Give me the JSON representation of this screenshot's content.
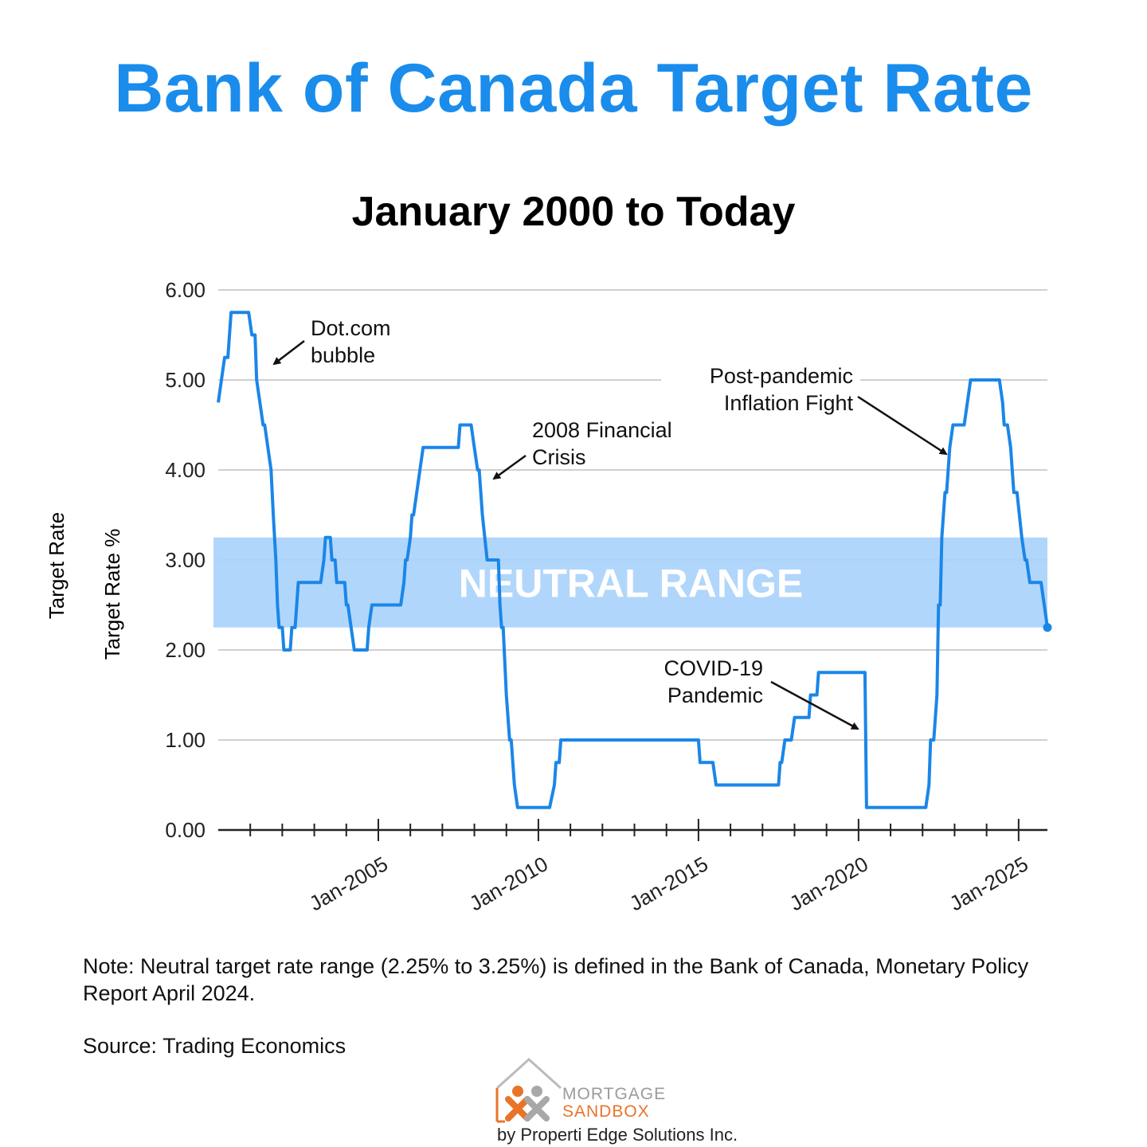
{
  "page": {
    "title": "Bank of Canada Target Rate",
    "note": "Note: Neutral target rate range (2.25% to 3.25%) is defined in the Bank of Canada, Monetary Policy Report April 2024.",
    "source": "Source: Trading Economics"
  },
  "logo": {
    "line1": "MORTGAGE",
    "line2": "SANDBOX",
    "byline": "by Properti Edge Solutions Inc."
  },
  "colors": {
    "title": "#1a8cec",
    "line": "#1a86e8",
    "band": "#a9d2fb",
    "band_text": "#ffffff",
    "grid": "#d0d0d0"
  },
  "chart_data": {
    "type": "line",
    "title": "January 2000 to Today",
    "ylabel_outer": "Target Rate",
    "ylabel": "Target Rate %",
    "ylim": [
      0,
      6
    ],
    "yticks": [
      0,
      1,
      2,
      3,
      4,
      5,
      6
    ],
    "ytick_labels": [
      "0.00",
      "1.00",
      "2.00",
      "3.00",
      "4.00",
      "5.00",
      "6.00"
    ],
    "xlim": [
      2000.0,
      2025.9
    ],
    "xtick_labels": [
      {
        "label": "Jan-2005",
        "x": 2005.0
      },
      {
        "label": "Jan-2010",
        "x": 2010.0
      },
      {
        "label": "Jan-2015",
        "x": 2015.0
      },
      {
        "label": "Jan-2020",
        "x": 2020.0
      },
      {
        "label": "Jan-2025",
        "x": 2025.0
      }
    ],
    "neutral_range": {
      "low": 2.25,
      "high": 3.25,
      "label": "NEUTRAL RANGE"
    },
    "series": [
      {
        "name": "Target Rate",
        "points": [
          [
            2000.0,
            4.75
          ],
          [
            2000.1,
            5.0
          ],
          [
            2000.2,
            5.25
          ],
          [
            2000.3,
            5.25
          ],
          [
            2000.35,
            5.5
          ],
          [
            2000.4,
            5.75
          ],
          [
            2000.95,
            5.75
          ],
          [
            2001.05,
            5.5
          ],
          [
            2001.15,
            5.5
          ],
          [
            2001.2,
            5.0
          ],
          [
            2001.3,
            4.75
          ],
          [
            2001.4,
            4.5
          ],
          [
            2001.45,
            4.5
          ],
          [
            2001.55,
            4.25
          ],
          [
            2001.65,
            4.0
          ],
          [
            2001.72,
            3.5
          ],
          [
            2001.8,
            3.0
          ],
          [
            2001.85,
            2.5
          ],
          [
            2001.9,
            2.25
          ],
          [
            2002.0,
            2.25
          ],
          [
            2002.05,
            2.0
          ],
          [
            2002.25,
            2.0
          ],
          [
            2002.3,
            2.25
          ],
          [
            2002.4,
            2.25
          ],
          [
            2002.45,
            2.5
          ],
          [
            2002.5,
            2.75
          ],
          [
            2003.2,
            2.75
          ],
          [
            2003.3,
            3.0
          ],
          [
            2003.35,
            3.25
          ],
          [
            2003.5,
            3.25
          ],
          [
            2003.55,
            3.0
          ],
          [
            2003.65,
            3.0
          ],
          [
            2003.7,
            2.75
          ],
          [
            2003.95,
            2.75
          ],
          [
            2004.0,
            2.5
          ],
          [
            2004.05,
            2.5
          ],
          [
            2004.15,
            2.25
          ],
          [
            2004.25,
            2.0
          ],
          [
            2004.65,
            2.0
          ],
          [
            2004.7,
            2.25
          ],
          [
            2004.8,
            2.5
          ],
          [
            2005.7,
            2.5
          ],
          [
            2005.8,
            2.75
          ],
          [
            2005.85,
            3.0
          ],
          [
            2005.9,
            3.0
          ],
          [
            2006.0,
            3.25
          ],
          [
            2006.05,
            3.5
          ],
          [
            2006.1,
            3.5
          ],
          [
            2006.2,
            3.75
          ],
          [
            2006.3,
            4.0
          ],
          [
            2006.4,
            4.25
          ],
          [
            2007.5,
            4.25
          ],
          [
            2007.55,
            4.5
          ],
          [
            2007.9,
            4.5
          ],
          [
            2008.0,
            4.25
          ],
          [
            2008.1,
            4.0
          ],
          [
            2008.15,
            4.0
          ],
          [
            2008.25,
            3.5
          ],
          [
            2008.4,
            3.0
          ],
          [
            2008.75,
            3.0
          ],
          [
            2008.8,
            2.5
          ],
          [
            2008.85,
            2.25
          ],
          [
            2008.9,
            2.25
          ],
          [
            2009.0,
            1.5
          ],
          [
            2009.1,
            1.0
          ],
          [
            2009.15,
            1.0
          ],
          [
            2009.25,
            0.5
          ],
          [
            2009.35,
            0.25
          ],
          [
            2010.35,
            0.25
          ],
          [
            2010.5,
            0.5
          ],
          [
            2010.55,
            0.75
          ],
          [
            2010.65,
            0.75
          ],
          [
            2010.7,
            1.0
          ],
          [
            2015.0,
            1.0
          ],
          [
            2015.05,
            0.75
          ],
          [
            2015.45,
            0.75
          ],
          [
            2015.55,
            0.5
          ],
          [
            2017.5,
            0.5
          ],
          [
            2017.55,
            0.75
          ],
          [
            2017.6,
            0.75
          ],
          [
            2017.7,
            1.0
          ],
          [
            2017.9,
            1.0
          ],
          [
            2018.0,
            1.25
          ],
          [
            2018.45,
            1.25
          ],
          [
            2018.5,
            1.5
          ],
          [
            2018.7,
            1.5
          ],
          [
            2018.75,
            1.75
          ],
          [
            2020.2,
            1.75
          ],
          [
            2020.25,
            0.25
          ],
          [
            2022.1,
            0.25
          ],
          [
            2022.2,
            0.5
          ],
          [
            2022.25,
            1.0
          ],
          [
            2022.35,
            1.0
          ],
          [
            2022.45,
            1.5
          ],
          [
            2022.5,
            2.5
          ],
          [
            2022.55,
            2.5
          ],
          [
            2022.6,
            3.25
          ],
          [
            2022.7,
            3.75
          ],
          [
            2022.75,
            3.75
          ],
          [
            2022.85,
            4.25
          ],
          [
            2022.95,
            4.5
          ],
          [
            2023.3,
            4.5
          ],
          [
            2023.4,
            4.75
          ],
          [
            2023.5,
            5.0
          ],
          [
            2024.4,
            5.0
          ],
          [
            2024.5,
            4.75
          ],
          [
            2024.55,
            4.5
          ],
          [
            2024.65,
            4.5
          ],
          [
            2024.75,
            4.25
          ],
          [
            2024.85,
            3.75
          ],
          [
            2024.95,
            3.75
          ],
          [
            2025.1,
            3.25
          ],
          [
            2025.2,
            3.0
          ],
          [
            2025.25,
            3.0
          ],
          [
            2025.35,
            2.75
          ],
          [
            2025.7,
            2.75
          ],
          [
            2025.8,
            2.5
          ],
          [
            2025.9,
            2.25
          ]
        ]
      }
    ],
    "annotations": [
      {
        "lines": [
          "Dot.com",
          "bubble"
        ],
        "x": 2001.7,
        "y": 5.75
      },
      {
        "lines": [
          "2008 Financial",
          "Crisis"
        ],
        "x": 2009.3,
        "y": 4.7
      },
      {
        "lines": [
          "Post-pandemic",
          "Inflation Fight"
        ],
        "x": 2020.0,
        "y": 5.2
      },
      {
        "lines": [
          "COVID-19",
          "Pandemic"
        ],
        "x": 2020.0,
        "y": 1.6
      }
    ]
  }
}
